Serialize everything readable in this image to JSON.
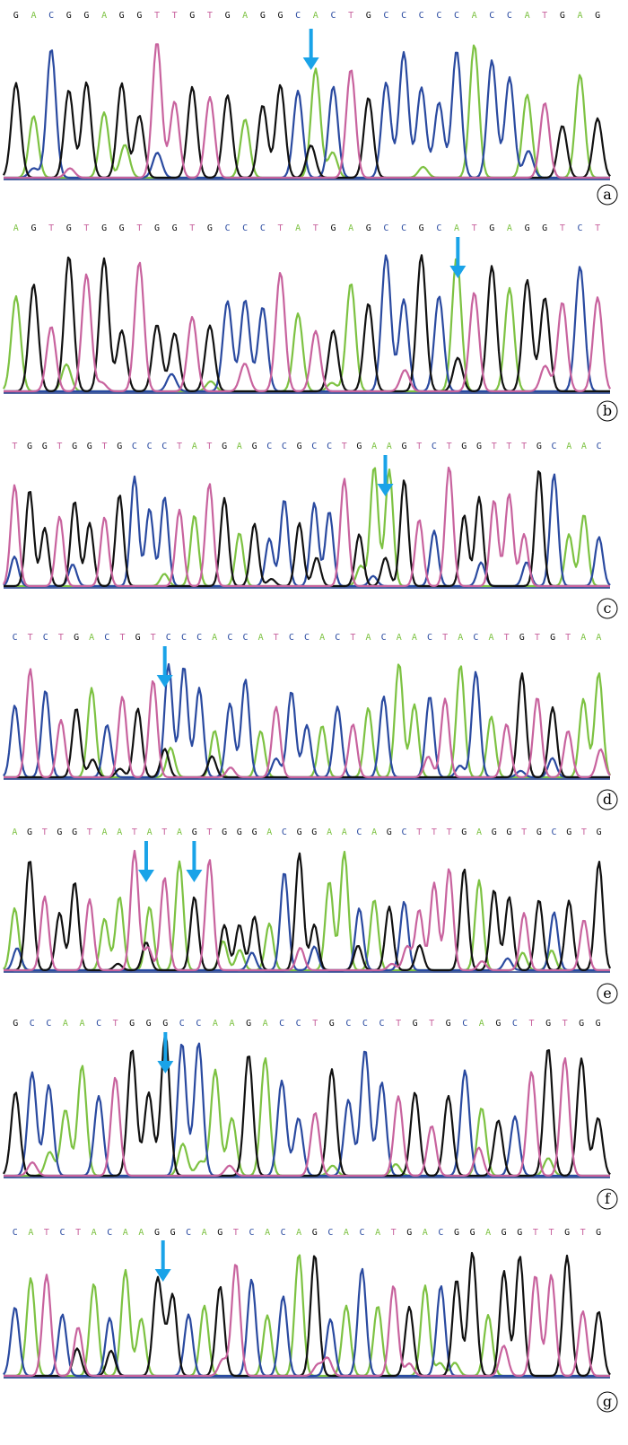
{
  "colors": {
    "A": "#7dc242",
    "C": "#2a4aa0",
    "G": "#111111",
    "T": "#c8639e",
    "arrow": "#1aa3e8",
    "baseline": "#1f3b8c"
  },
  "panels": [
    {
      "label": "a",
      "sequence": "GACGGAGGTTGTGAGGCACTGCCCCCACCATGAG",
      "arrows": [
        0.507
      ]
    },
    {
      "label": "b",
      "sequence": "AGTGTGGTGGTGCCCTATGAGCCGCATGAGGTCT",
      "arrows": [
        0.752
      ]
    },
    {
      "label": "c",
      "sequence": "TGGTGGTGCCCTATGAGCCGCCTGAAGTCTGGTTTGCAAC",
      "arrows": [
        0.631
      ]
    },
    {
      "label": "d",
      "sequence": "CTCTGACTGTCCCACCATCCACTACAACTACATGTGTAA",
      "arrows": [
        0.263
      ]
    },
    {
      "label": "e",
      "sequence": "AGTGGTAATATAGTGGGACGGAACAGCTTTGAGGTGCGTG",
      "arrows": [
        0.232,
        0.312
      ]
    },
    {
      "label": "f",
      "sequence": "GCCAACTGGGCCAAGACCTGCCCTGTGCAGCTGTGG",
      "arrows": [
        0.264
      ]
    },
    {
      "label": "g",
      "sequence": "CATCTACAAGGCAGTCACAGCACATGACGGAGGTTGTG",
      "arrows": [
        0.26
      ]
    }
  ]
}
